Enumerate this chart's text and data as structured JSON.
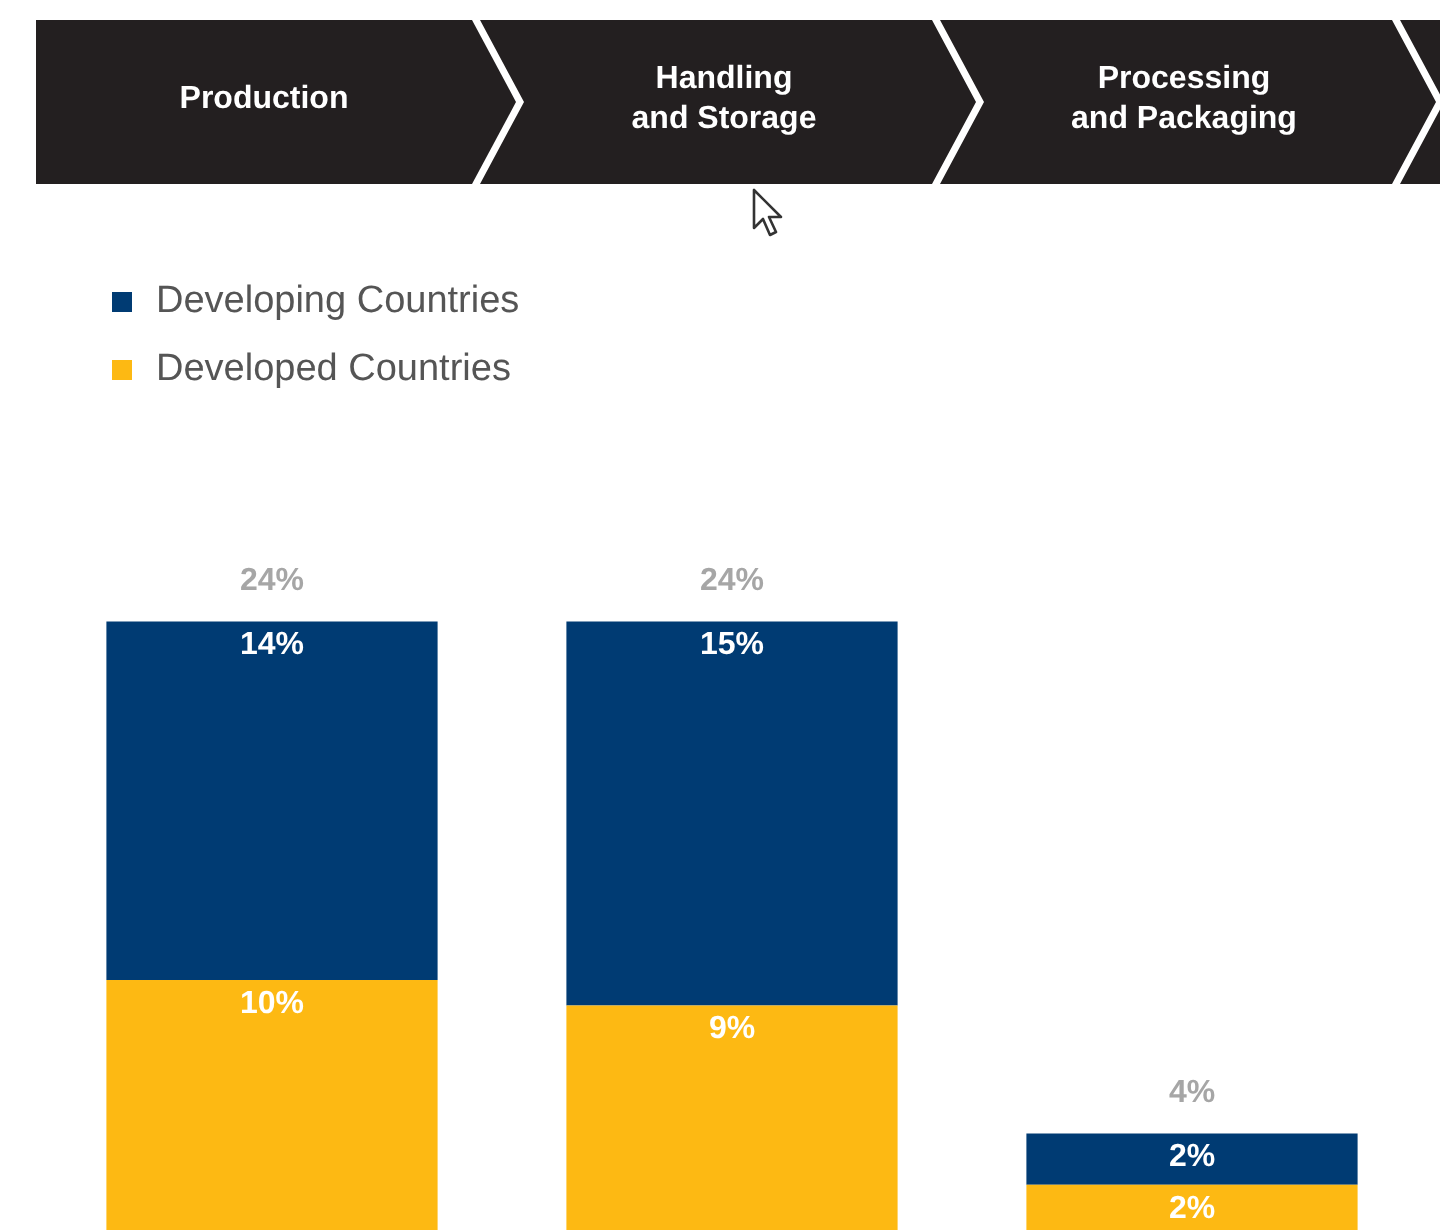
{
  "chart_data": {
    "type": "bar",
    "stacked": true,
    "categories": [
      "Production",
      "Handling\nand Storage",
      "Processing\nand Packaging"
    ],
    "series": [
      {
        "name": "Developed Countries",
        "color": "#fdb913",
        "values": [
          10,
          9,
          2
        ],
        "value_labels": [
          "10%",
          "9%",
          "2%"
        ]
      },
      {
        "name": "Developing Countries",
        "color": "#003b73",
        "values": [
          14,
          15,
          2
        ],
        "value_labels": [
          "14%",
          "15%",
          "2%"
        ]
      }
    ],
    "totals": [
      "24%",
      "24%",
      "4%"
    ],
    "legend": "top left"
  }
}
